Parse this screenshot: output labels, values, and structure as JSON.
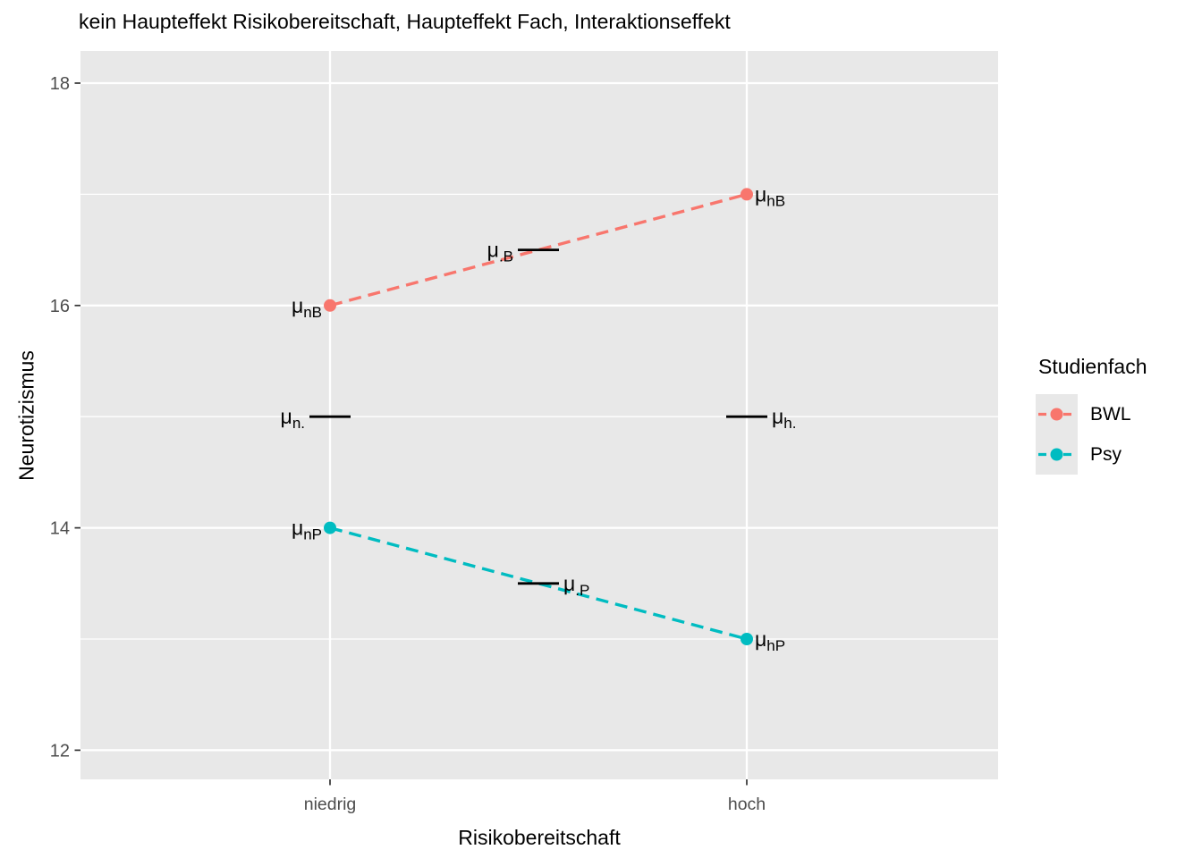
{
  "chart_data": {
    "type": "line",
    "title": "kein Haupteffekt Risikobereitschaft, Haupteffekt Fach, Interaktionseffekt",
    "xlabel": "Risikobereitschaft",
    "ylabel": "Neurotizismus",
    "categories": [
      "niedrig",
      "hoch"
    ],
    "y_ticks": [
      12,
      14,
      16,
      18
    ],
    "y_minor_ticks": [
      13,
      15,
      17
    ],
    "ylim": [
      11.7,
      18.3
    ],
    "legend_title": "Studienfach",
    "legend_position": "right",
    "grid": "on",
    "series": [
      {
        "name": "BWL",
        "color": "#F8766D",
        "linestyle": "dashed",
        "values": [
          16,
          17
        ],
        "point_labels": [
          {
            "label": "μ_nB",
            "side": "left"
          },
          {
            "label": "μ_hB",
            "side": "right"
          }
        ]
      },
      {
        "name": "Psy",
        "color": "#00BCC1",
        "linestyle": "dashed",
        "values": [
          14,
          13
        ],
        "point_labels": [
          {
            "label": "μ_nP",
            "side": "left"
          },
          {
            "label": "μ_hP",
            "side": "right"
          }
        ]
      }
    ],
    "marginal_means": [
      {
        "label": "μ_.B",
        "value": 16.5,
        "at": "mid",
        "side": "left"
      },
      {
        "label": "μ_.P",
        "value": 13.5,
        "at": "mid",
        "side": "right"
      },
      {
        "label": "μ_n.",
        "value": 15,
        "at": "niedrig",
        "side": "left"
      },
      {
        "label": "μ_h.",
        "value": 15,
        "at": "hoch",
        "side": "right"
      }
    ],
    "style": {
      "panel_bg": "#E8E8E8",
      "grid_color": "#FFFFFF",
      "tick_label_color": "#4D4D4D",
      "tick_mark_color": "#333333",
      "mean_segment_color": "#000000",
      "label_color": "#000000"
    }
  }
}
